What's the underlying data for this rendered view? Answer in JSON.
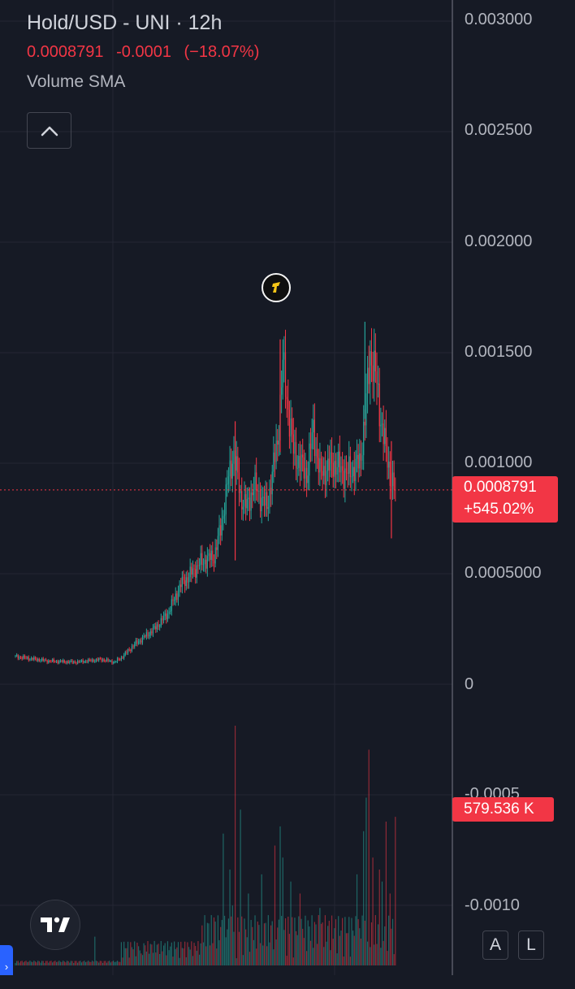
{
  "header": {
    "title": "Hold/USD - UNI · 12h",
    "last_price": "0.0008791",
    "change": "-0.0001",
    "change_pct": "(−18.07%)",
    "indicator": "Volume SMA"
  },
  "colors": {
    "up": "#26a69a",
    "down": "#f23645",
    "background": "#161a25",
    "text": "#b2b5be"
  },
  "price_axis": {
    "labels": [
      "0.003000",
      "0.002500",
      "0.002000",
      "0.001500",
      "0.001000",
      "0.0005000",
      "0",
      "-0.0005",
      "-0.0010"
    ]
  },
  "price_tag": {
    "price": "0.0008791",
    "pct": "+545.02%"
  },
  "volume_tag": {
    "value": "579.536 K"
  },
  "scale_buttons": {
    "auto": "A",
    "log": "L"
  },
  "icons": {
    "collapse": "chevron-up-icon",
    "logo": "tradingview-logo-icon",
    "event": "token-event-icon",
    "expand": "chevron-right-icon"
  },
  "chart_data": {
    "type": "candlestick",
    "title": "Hold/USD - UNI · 12h",
    "ylim": [
      -0.0011,
      0.0031
    ],
    "last": 0.0008791,
    "anchors": [
      [
        0,
        0.000125
      ],
      [
        25,
        0.000105
      ],
      [
        45,
        0.0001
      ],
      [
        65,
        0.000112
      ],
      [
        75,
        0.0001
      ],
      [
        80,
        0.00012
      ],
      [
        90,
        0.00018
      ],
      [
        105,
        0.00025
      ],
      [
        115,
        0.00032
      ],
      [
        125,
        0.00045
      ],
      [
        140,
        0.00055
      ],
      [
        150,
        0.00058
      ],
      [
        155,
        0.0007
      ],
      [
        160,
        0.0009
      ],
      [
        165,
        0.00105
      ],
      [
        170,
        0.00085
      ],
      [
        175,
        0.0008
      ],
      [
        180,
        0.0009
      ],
      [
        190,
        0.0008
      ],
      [
        198,
        0.0011
      ],
      [
        202,
        0.00145
      ],
      [
        206,
        0.00125
      ],
      [
        210,
        0.00105
      ],
      [
        220,
        0.00095
      ],
      [
        225,
        0.00115
      ],
      [
        230,
        0.00095
      ],
      [
        240,
        0.001
      ],
      [
        250,
        0.00095
      ],
      [
        260,
        0.001
      ],
      [
        264,
        0.0012
      ],
      [
        268,
        0.0015
      ],
      [
        272,
        0.0014
      ],
      [
        276,
        0.0012
      ],
      [
        280,
        0.00105
      ],
      [
        284,
        0.00092
      ],
      [
        287,
        0.0008791
      ]
    ],
    "volume_spikes": [
      [
        60,
        0.12
      ],
      [
        95,
        0.05
      ],
      [
        150,
        0.2
      ],
      [
        157,
        0.55
      ],
      [
        162,
        0.4
      ],
      [
        164,
        0.25
      ],
      [
        166,
        1.0
      ],
      [
        170,
        0.65
      ],
      [
        176,
        0.3
      ],
      [
        186,
        0.38
      ],
      [
        196,
        0.5
      ],
      [
        200,
        0.58
      ],
      [
        202,
        0.45
      ],
      [
        208,
        0.35
      ],
      [
        215,
        0.3
      ],
      [
        230,
        0.24
      ],
      [
        258,
        0.38
      ],
      [
        263,
        0.56
      ],
      [
        265,
        0.7
      ],
      [
        267,
        0.9
      ],
      [
        270,
        0.45
      ],
      [
        275,
        0.4
      ],
      [
        277,
        0.35
      ],
      [
        280,
        0.6
      ],
      [
        283,
        0.3
      ],
      [
        287,
        0.62
      ]
    ]
  }
}
